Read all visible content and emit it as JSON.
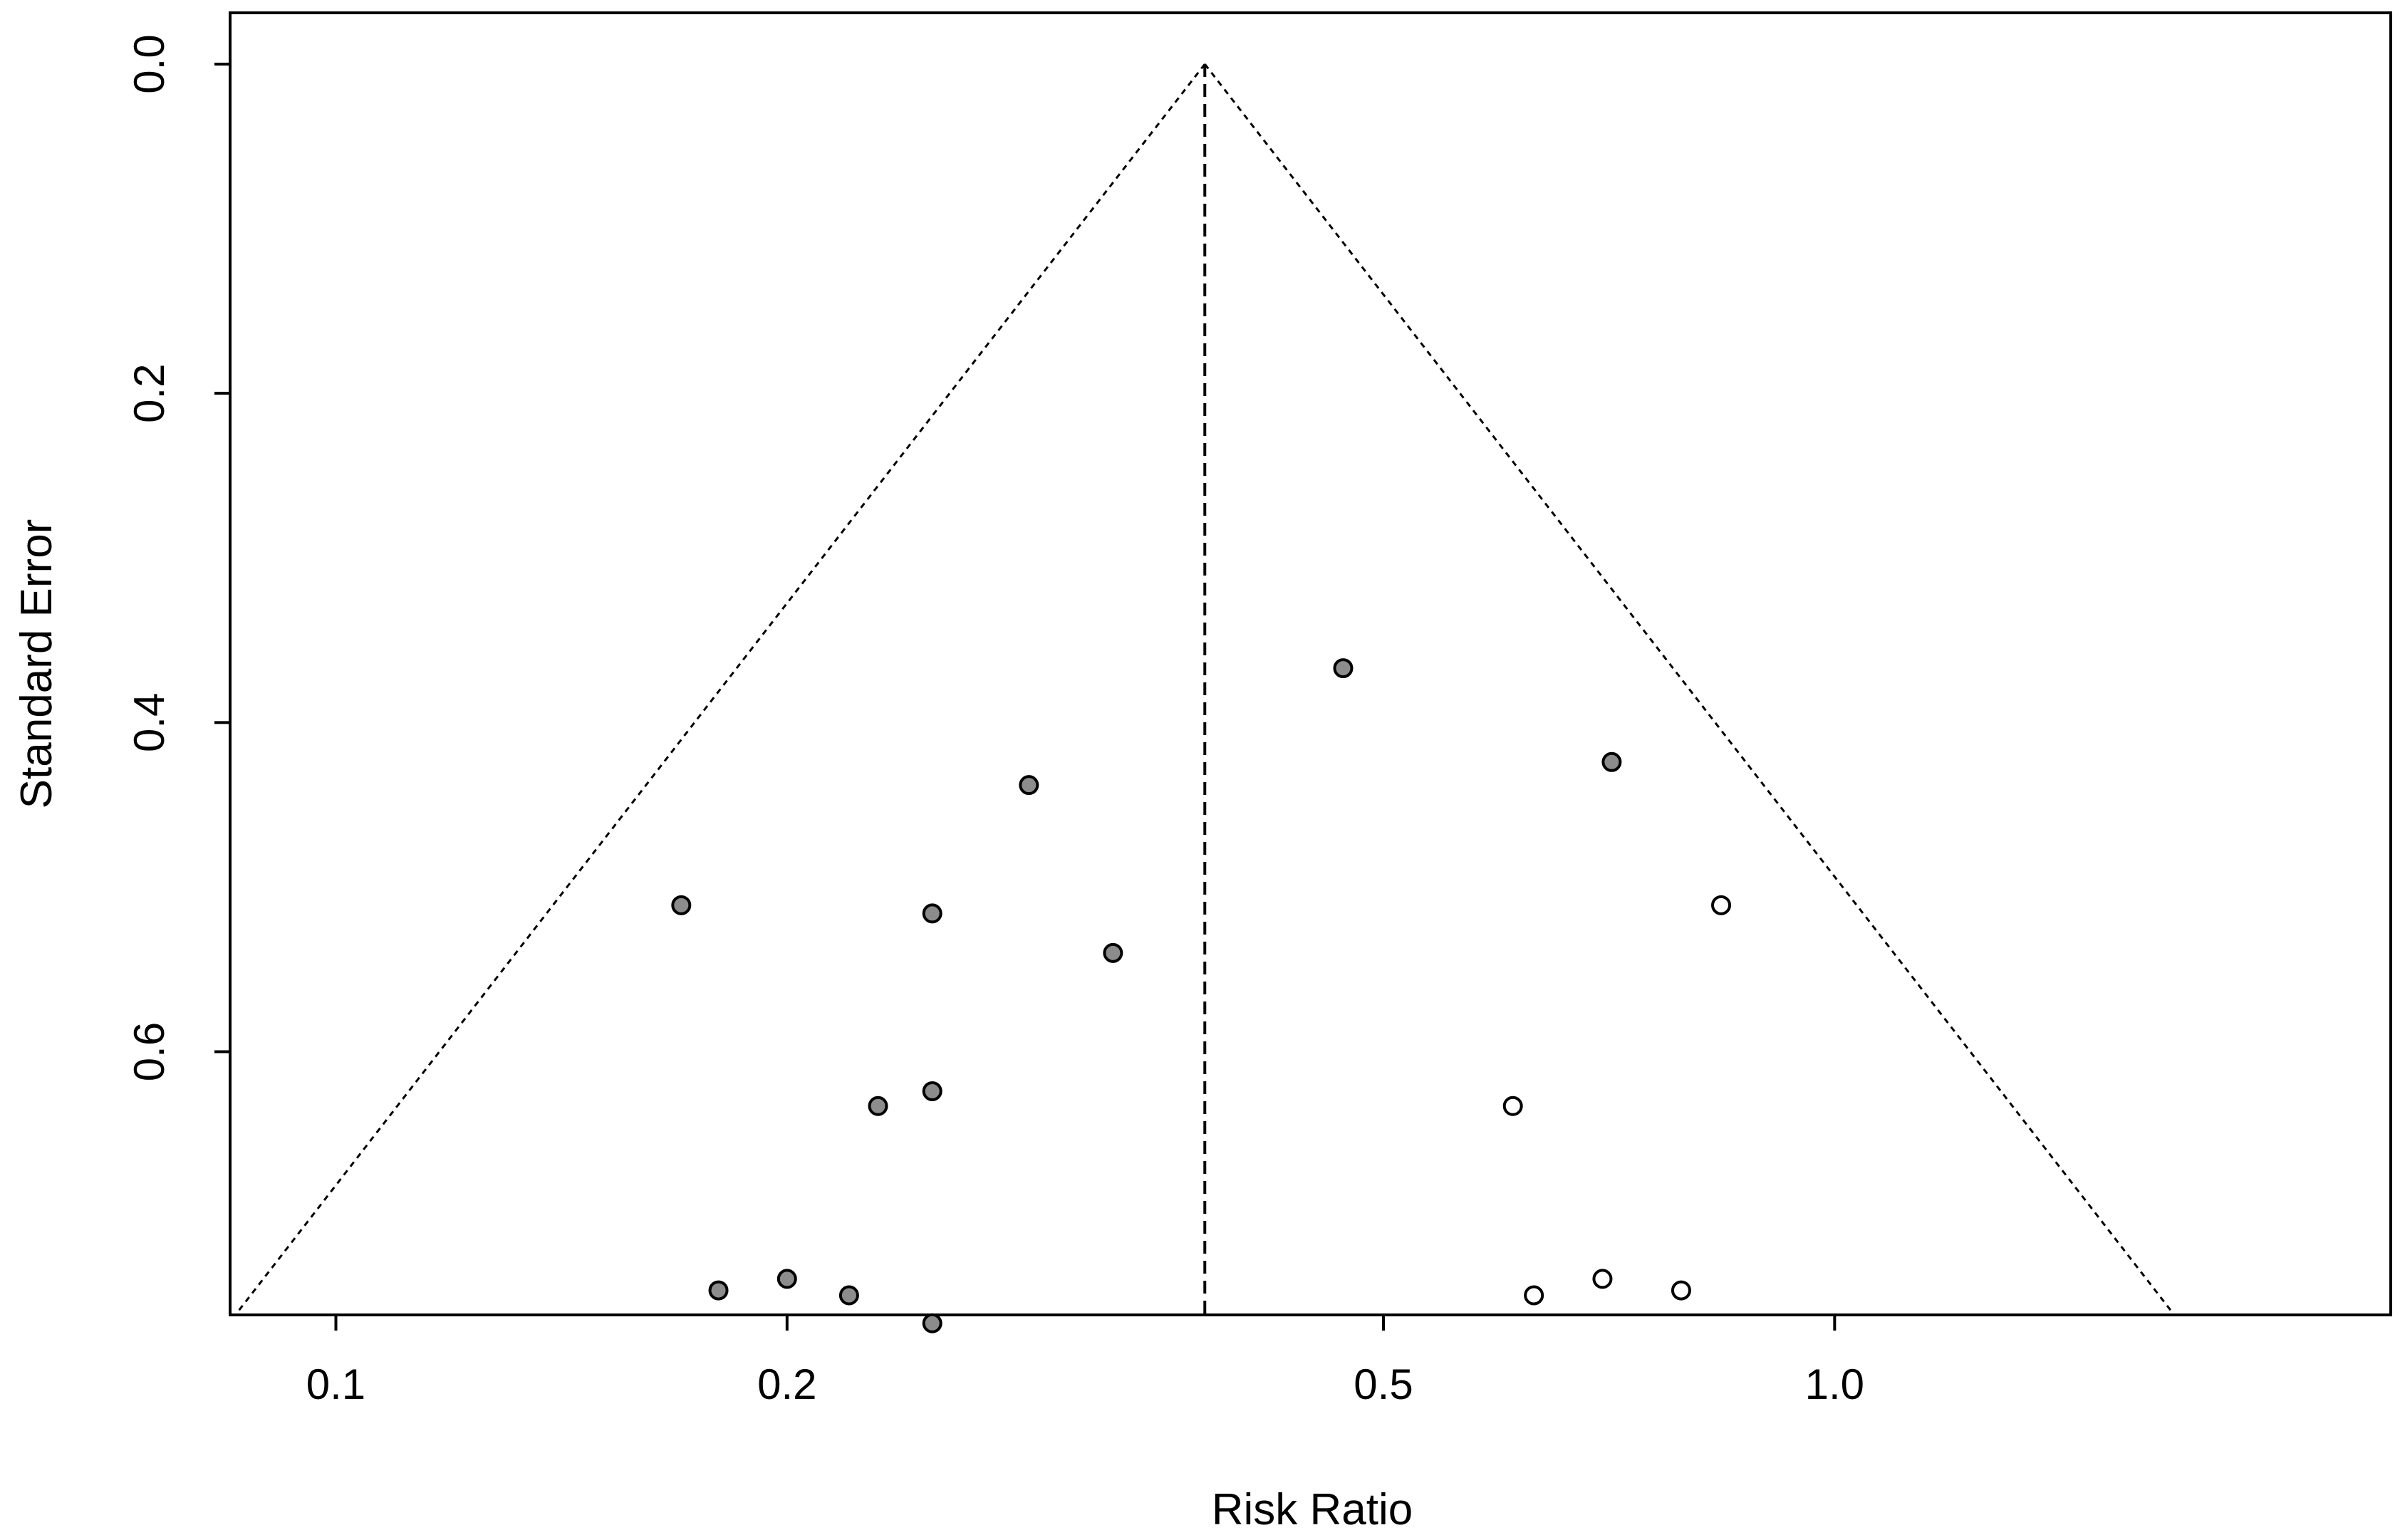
{
  "chart_data": {
    "type": "scatter",
    "subtype": "funnel plot",
    "title": "",
    "xlabel": "Risk Ratio",
    "ylabel": "Standard Error",
    "x_scale": "log",
    "x_range": [
      0.085,
      2.35
    ],
    "y_range": [
      0.0,
      0.785
    ],
    "y_reversed": true,
    "x_ticks": [
      0.1,
      0.2,
      0.5,
      1.0
    ],
    "x_tick_labels": [
      "0.1",
      "0.2",
      "0.5",
      "1.0"
    ],
    "y_ticks": [
      0.0,
      0.2,
      0.4,
      0.6
    ],
    "y_tick_labels": [
      "0.0",
      "0.2",
      "0.4",
      "0.6"
    ],
    "grid": false,
    "pooled_estimate": 0.38,
    "funnel_max_se": 0.76,
    "funnel_z": 1.96,
    "series": [
      {
        "name": "",
        "fill": "#8c8c8c",
        "points": [
          {
            "x": 0.47,
            "y": 0.367
          },
          {
            "x": 0.71,
            "y": 0.424
          },
          {
            "x": 0.29,
            "y": 0.438
          },
          {
            "x": 0.17,
            "y": 0.511
          },
          {
            "x": 0.25,
            "y": 0.516
          },
          {
            "x": 0.33,
            "y": 0.54
          },
          {
            "x": 0.25,
            "y": 0.624
          },
          {
            "x": 0.23,
            "y": 0.633
          },
          {
            "x": 0.18,
            "y": 0.745
          },
          {
            "x": 0.2,
            "y": 0.738
          },
          {
            "x": 0.22,
            "y": 0.748
          },
          {
            "x": 0.25,
            "y": 0.765
          }
        ]
      },
      {
        "name": "",
        "fill": "#ffffff",
        "points": [
          {
            "x": 0.84,
            "y": 0.511
          },
          {
            "x": 0.61,
            "y": 0.633
          },
          {
            "x": 0.63,
            "y": 0.748
          },
          {
            "x": 0.7,
            "y": 0.738
          },
          {
            "x": 0.79,
            "y": 0.745
          }
        ]
      }
    ]
  }
}
